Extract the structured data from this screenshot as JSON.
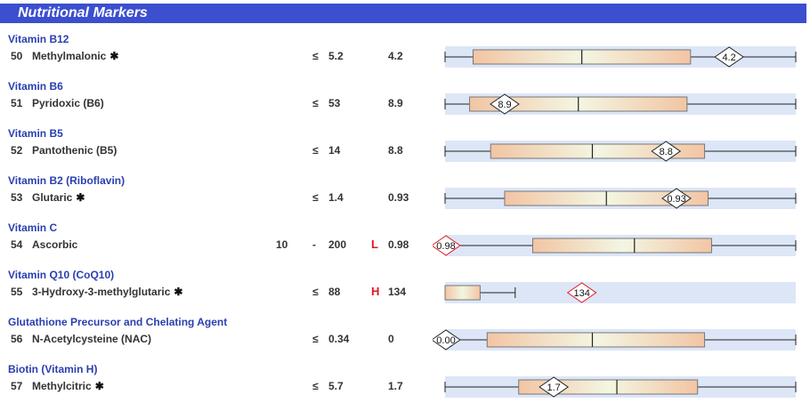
{
  "header": {
    "title": "Nutritional Markers"
  },
  "colors": {
    "header_bg": "#3b4fcf",
    "group_title": "#2a3fb0",
    "flag": "#e3161f",
    "band_bg": "#dde6f7"
  },
  "markers": [
    {
      "group": "Vitamin B12",
      "num": "50",
      "name": "Methylmalonic",
      "asterisk": true,
      "low": "",
      "op": "≤",
      "high": "5.2",
      "flag": "",
      "result": "4.2",
      "marker_label": "4.2",
      "marker_alert": false,
      "plot": {
        "whisker_min": 0.0,
        "whisker_max": 1.0,
        "box_lo": 0.08,
        "box_hi": 0.7,
        "median": 0.39,
        "result": 0.81
      }
    },
    {
      "group": "Vitamin B6",
      "num": "51",
      "name": "Pyridoxic (B6)",
      "asterisk": false,
      "low": "",
      "op": "≤",
      "high": "53",
      "flag": "",
      "result": "8.9",
      "marker_label": "8.9",
      "marker_alert": false,
      "plot": {
        "whisker_min": 0.0,
        "whisker_max": 1.0,
        "box_lo": 0.07,
        "box_hi": 0.69,
        "median": 0.38,
        "result": 0.17
      }
    },
    {
      "group": "Vitamin B5",
      "num": "52",
      "name": "Pantothenic (B5)",
      "asterisk": false,
      "low": "",
      "op": "≤",
      "high": "14",
      "flag": "",
      "result": "8.8",
      "marker_label": "8.8",
      "marker_alert": false,
      "plot": {
        "whisker_min": 0.0,
        "whisker_max": 1.0,
        "box_lo": 0.13,
        "box_hi": 0.74,
        "median": 0.42,
        "result": 0.63
      }
    },
    {
      "group": "Vitamin B2 (Riboflavin)",
      "num": "53",
      "name": "Glutaric",
      "asterisk": true,
      "low": "",
      "op": "≤",
      "high": "1.4",
      "flag": "",
      "result": "0.93",
      "marker_label": "0.93",
      "marker_alert": false,
      "plot": {
        "whisker_min": 0.0,
        "whisker_max": 1.0,
        "box_lo": 0.17,
        "box_hi": 0.75,
        "median": 0.46,
        "result": 0.66
      }
    },
    {
      "group": "Vitamin C",
      "num": "54",
      "name": "Ascorbic",
      "asterisk": false,
      "low": "10",
      "op": "-",
      "high": "200",
      "flag": "L",
      "result": "0.98",
      "marker_label": "0.98",
      "marker_alert": true,
      "plot": {
        "whisker_min": 0.0,
        "whisker_max": 1.0,
        "box_lo": 0.25,
        "box_hi": 0.76,
        "median": 0.54,
        "result": 0.0
      }
    },
    {
      "group": "Vitamin Q10 (CoQ10)",
      "num": "55",
      "name": "3-Hydroxy-3-methylglutaric",
      "asterisk": true,
      "low": "",
      "op": "≤",
      "high": "88",
      "flag": "H",
      "result": "134",
      "marker_label": "134",
      "marker_alert": true,
      "plot": {
        "whisker_min": 0.0,
        "whisker_max": 0.2,
        "box_lo": 0.0,
        "box_hi": 0.1,
        "median": null,
        "result": 0.39
      }
    },
    {
      "group": "Glutathione Precursor and Chelating Agent",
      "num": "56",
      "name": "N-Acetylcysteine (NAC)",
      "asterisk": false,
      "low": "",
      "op": "≤",
      "high": "0.34",
      "flag": "",
      "result": "0",
      "marker_label": "0.00",
      "marker_alert": false,
      "plot": {
        "whisker_min": 0.0,
        "whisker_max": 1.0,
        "box_lo": 0.12,
        "box_hi": 0.74,
        "median": 0.42,
        "result": 0.0
      }
    },
    {
      "group": "Biotin (Vitamin H)",
      "num": "57",
      "name": "Methylcitric",
      "asterisk": true,
      "low": "",
      "op": "≤",
      "high": "5.7",
      "flag": "",
      "result": "1.7",
      "marker_label": "1.7",
      "marker_alert": false,
      "plot": {
        "whisker_min": 0.0,
        "whisker_max": 1.0,
        "box_lo": 0.21,
        "box_hi": 0.72,
        "median": 0.49,
        "result": 0.31
      }
    }
  ]
}
